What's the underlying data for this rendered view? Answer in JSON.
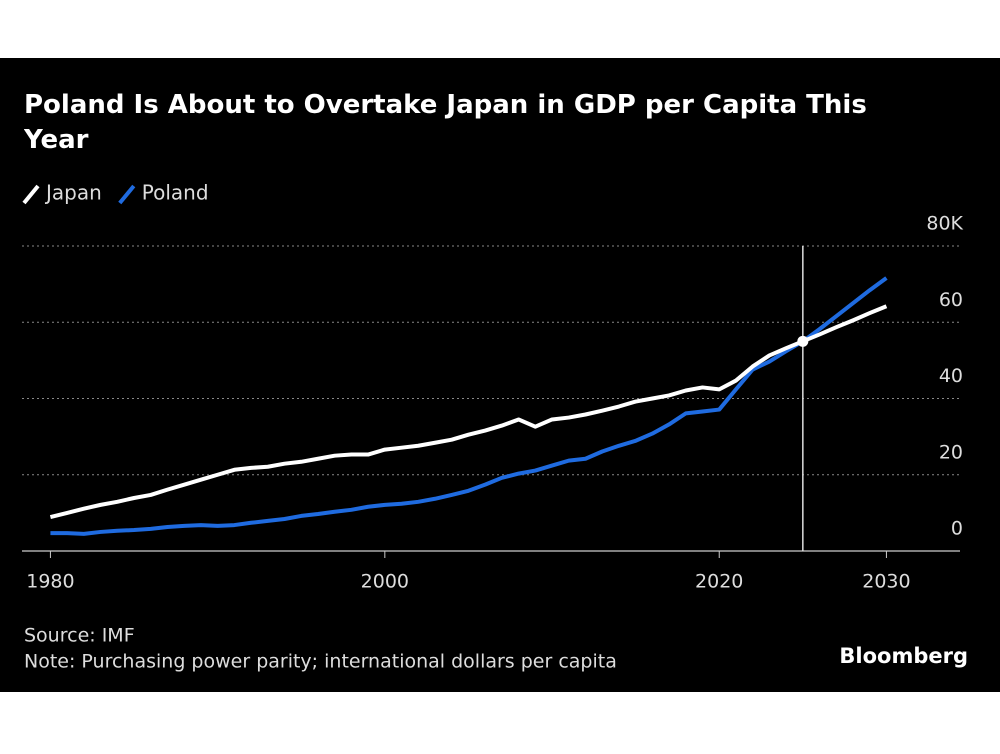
{
  "chart_data": {
    "type": "line",
    "title": "Poland Is About to Overtake Japan in GDP per Capita This Year",
    "source": "Source: IMF",
    "note": "Note: Purchasing power parity; international dollars per capita",
    "brand": "Bloomberg",
    "x": [
      1980,
      1981,
      1982,
      1983,
      1984,
      1985,
      1986,
      1987,
      1988,
      1989,
      1990,
      1991,
      1992,
      1993,
      1994,
      1995,
      1996,
      1997,
      1998,
      1999,
      2000,
      2001,
      2002,
      2003,
      2004,
      2005,
      2006,
      2007,
      2008,
      2009,
      2010,
      2011,
      2012,
      2013,
      2014,
      2015,
      2016,
      2017,
      2018,
      2019,
      2020,
      2021,
      2022,
      2023,
      2024,
      2025,
      2026,
      2027,
      2028,
      2029,
      2030
    ],
    "series": [
      {
        "name": "Poland",
        "color": "#1f6be0",
        "values": [
          4.7,
          4.7,
          4.5,
          5.0,
          5.3,
          5.5,
          5.8,
          6.3,
          6.6,
          6.8,
          6.6,
          6.8,
          7.4,
          7.9,
          8.4,
          9.2,
          9.7,
          10.3,
          10.8,
          11.6,
          12.1,
          12.4,
          12.9,
          13.7,
          14.7,
          15.8,
          17.4,
          19.2,
          20.3,
          21.1,
          22.4,
          23.7,
          24.2,
          26.1,
          27.6,
          28.9,
          30.8,
          33.2,
          36.1,
          36.6,
          37.1,
          42.4,
          47.6,
          49.7,
          52.4,
          55,
          58.2,
          61.6,
          65,
          68.4,
          71.6
        ]
      },
      {
        "name": "Japan",
        "color": "#ffffff",
        "values": [
          8.9,
          10.0,
          11.1,
          12.1,
          12.9,
          13.9,
          14.7,
          16.1,
          17.4,
          18.7,
          20.0,
          21.3,
          21.8,
          22.1,
          22.9,
          23.4,
          24.2,
          25.0,
          25.3,
          25.3,
          26.6,
          27.1,
          27.6,
          28.4,
          29.2,
          30.5,
          31.6,
          32.9,
          34.5,
          32.6,
          34.5,
          35.0,
          35.8,
          36.8,
          37.9,
          39.2,
          40.0,
          40.8,
          42.1,
          42.9,
          42.4,
          44.7,
          48.4,
          51.3,
          53.2,
          55,
          56.8,
          58.7,
          60.5,
          62.4,
          64.2
        ]
      }
    ],
    "highlight": {
      "x": 2025,
      "y": 55
    },
    "xlim": [
      1978.3,
      2034.4
    ],
    "xticks": [
      1980,
      2000,
      2020,
      2030
    ],
    "ylim": [
      0,
      80
    ],
    "yticks": [
      0,
      20,
      40,
      60,
      {
        "value": 80,
        "label": "80K"
      }
    ],
    "grid": true
  }
}
